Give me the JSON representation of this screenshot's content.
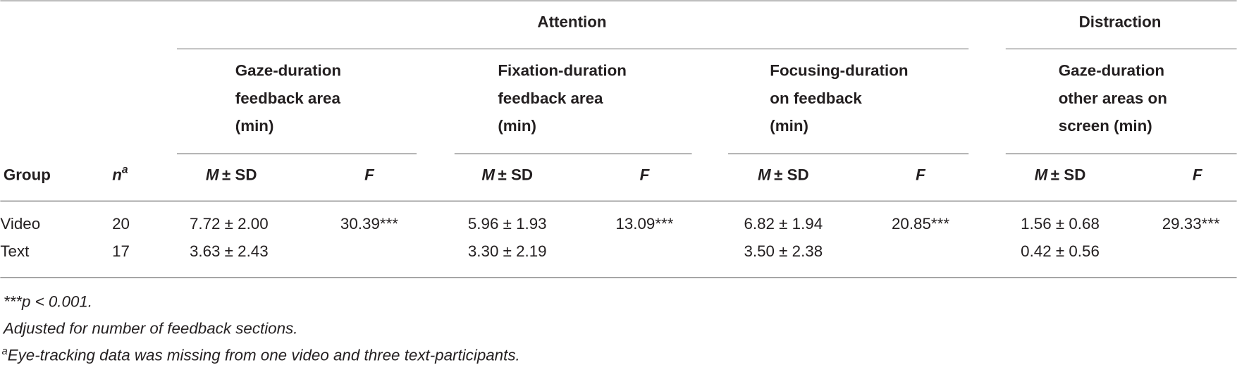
{
  "table": {
    "group_headers": [
      "Attention",
      "Distraction"
    ],
    "measures": [
      [
        "Gaze-duration",
        "feedback area",
        "(min)"
      ],
      [
        "Fixation-duration",
        "feedback area",
        "(min)"
      ],
      [
        "Focusing-duration",
        "on feedback",
        "(min)"
      ],
      [
        "Gaze-duration",
        "other areas on",
        "screen (min)"
      ]
    ],
    "column_headers": {
      "group": "Group",
      "n": "n",
      "n_note": "a",
      "mean": "M",
      "mean_rest": "± SD",
      "f": "F"
    },
    "rows": [
      [
        "Video",
        "20",
        "7.72 ± 2.00",
        "30.39***",
        "5.96 ± 1.93",
        "13.09***",
        "6.82 ± 1.94",
        "20.85***",
        "1.56 ± 0.68",
        "29.33***"
      ],
      [
        "Text",
        "17",
        "3.63 ± 2.43",
        "",
        "3.30 ± 2.19",
        "",
        "3.50 ± 2.38",
        "",
        "0.42 ± 0.56",
        ""
      ]
    ],
    "notes": [
      "***p < 0.001.",
      "Adjusted for number of feedback sections."
    ],
    "footnote": {
      "marker": "a",
      "text": "Eye-tracking data was missing from one video and three text-participants."
    }
  }
}
